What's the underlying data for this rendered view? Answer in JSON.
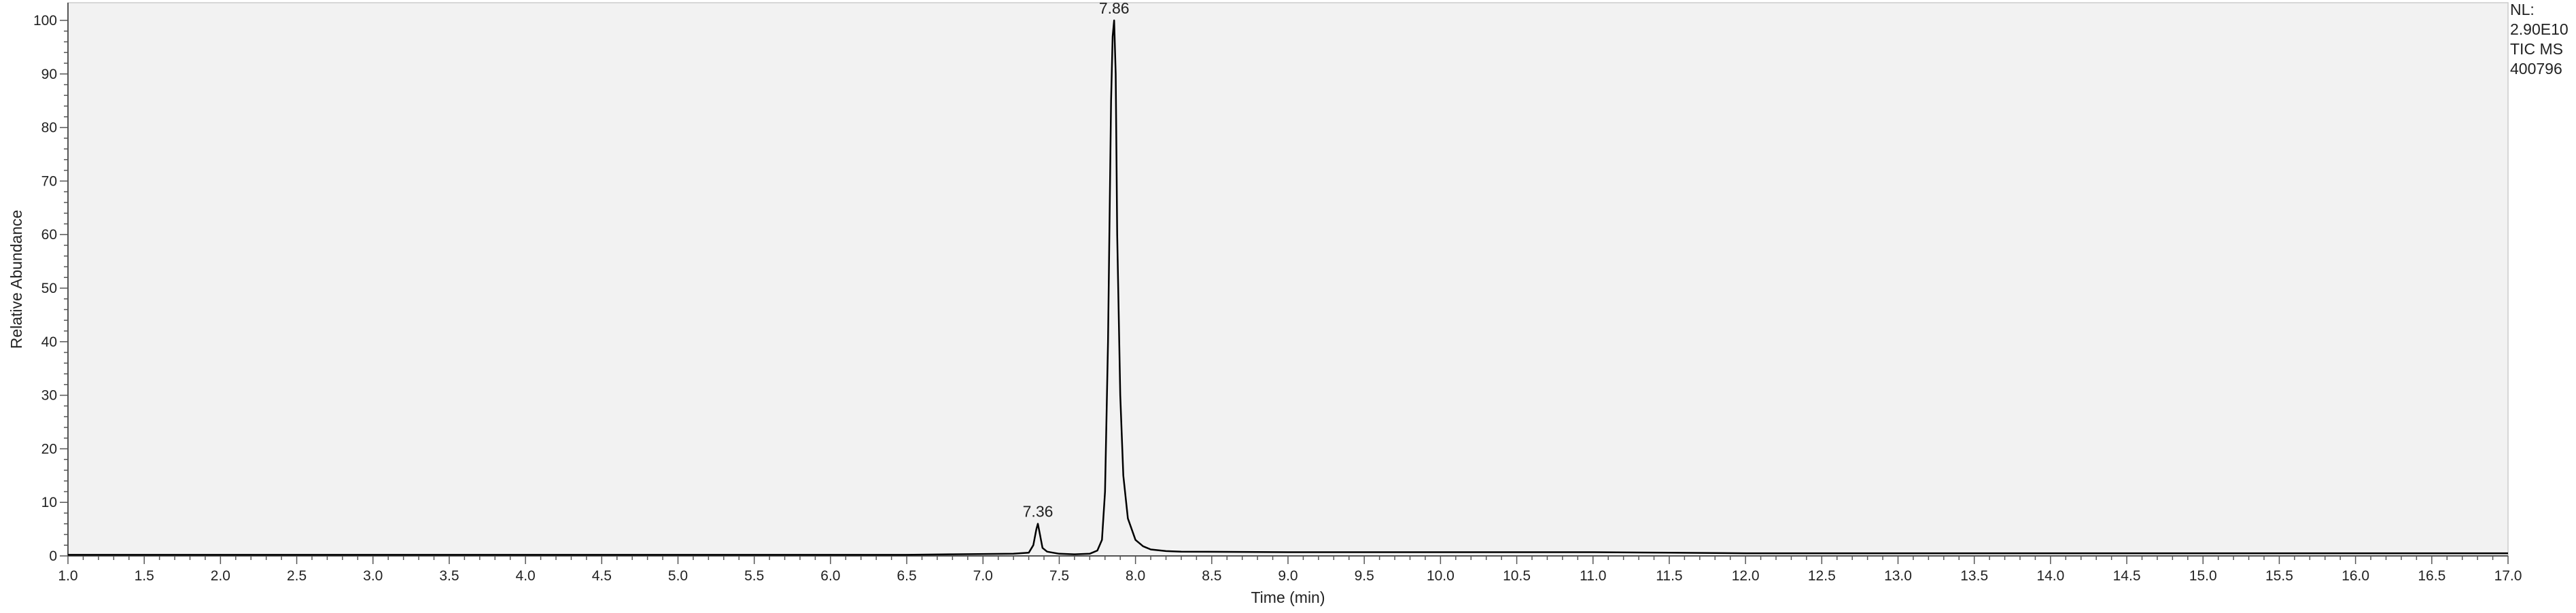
{
  "chart_data": {
    "type": "line",
    "title": "",
    "xlabel": "Time (min)",
    "ylabel": "Relative Abundance",
    "xlim": [
      1.0,
      17.0
    ],
    "ylim": [
      0,
      100
    ],
    "x_major_step": 0.5,
    "y_major_step": 10,
    "grid": false,
    "colors": {
      "plot_background": "#f2f2f2",
      "trace": "#000000",
      "axis": "#555555"
    },
    "info": [
      "NL:",
      "2.90E10",
      "TIC  MS",
      "400796"
    ],
    "peak_labels": [
      {
        "text": "7.36",
        "x": 7.36,
        "y": 6
      },
      {
        "text": "7.86",
        "x": 7.86,
        "y": 100
      }
    ],
    "series": [
      {
        "x": [
          1.0,
          6.5,
          6.8,
          7.2,
          7.3,
          7.33,
          7.35,
          7.36,
          7.37,
          7.39,
          7.42,
          7.46,
          7.5,
          7.6,
          7.7,
          7.75,
          7.78,
          7.8,
          7.82,
          7.84,
          7.85,
          7.86,
          7.87,
          7.88,
          7.9,
          7.92,
          7.95,
          8.0,
          8.05,
          8.1,
          8.2,
          8.3,
          9.0,
          11.0,
          11.5,
          12.0,
          17.0
        ],
        "y": [
          0.2,
          0.2,
          0.3,
          0.4,
          0.6,
          2.0,
          5.0,
          6.0,
          4.5,
          1.5,
          0.8,
          0.6,
          0.4,
          0.3,
          0.4,
          1.0,
          3.0,
          12.0,
          40.0,
          85.0,
          97.0,
          100.0,
          90.0,
          60.0,
          30.0,
          15.0,
          7.0,
          3.0,
          1.8,
          1.2,
          0.9,
          0.8,
          0.7,
          0.7,
          0.6,
          0.5,
          0.5
        ]
      }
    ]
  }
}
